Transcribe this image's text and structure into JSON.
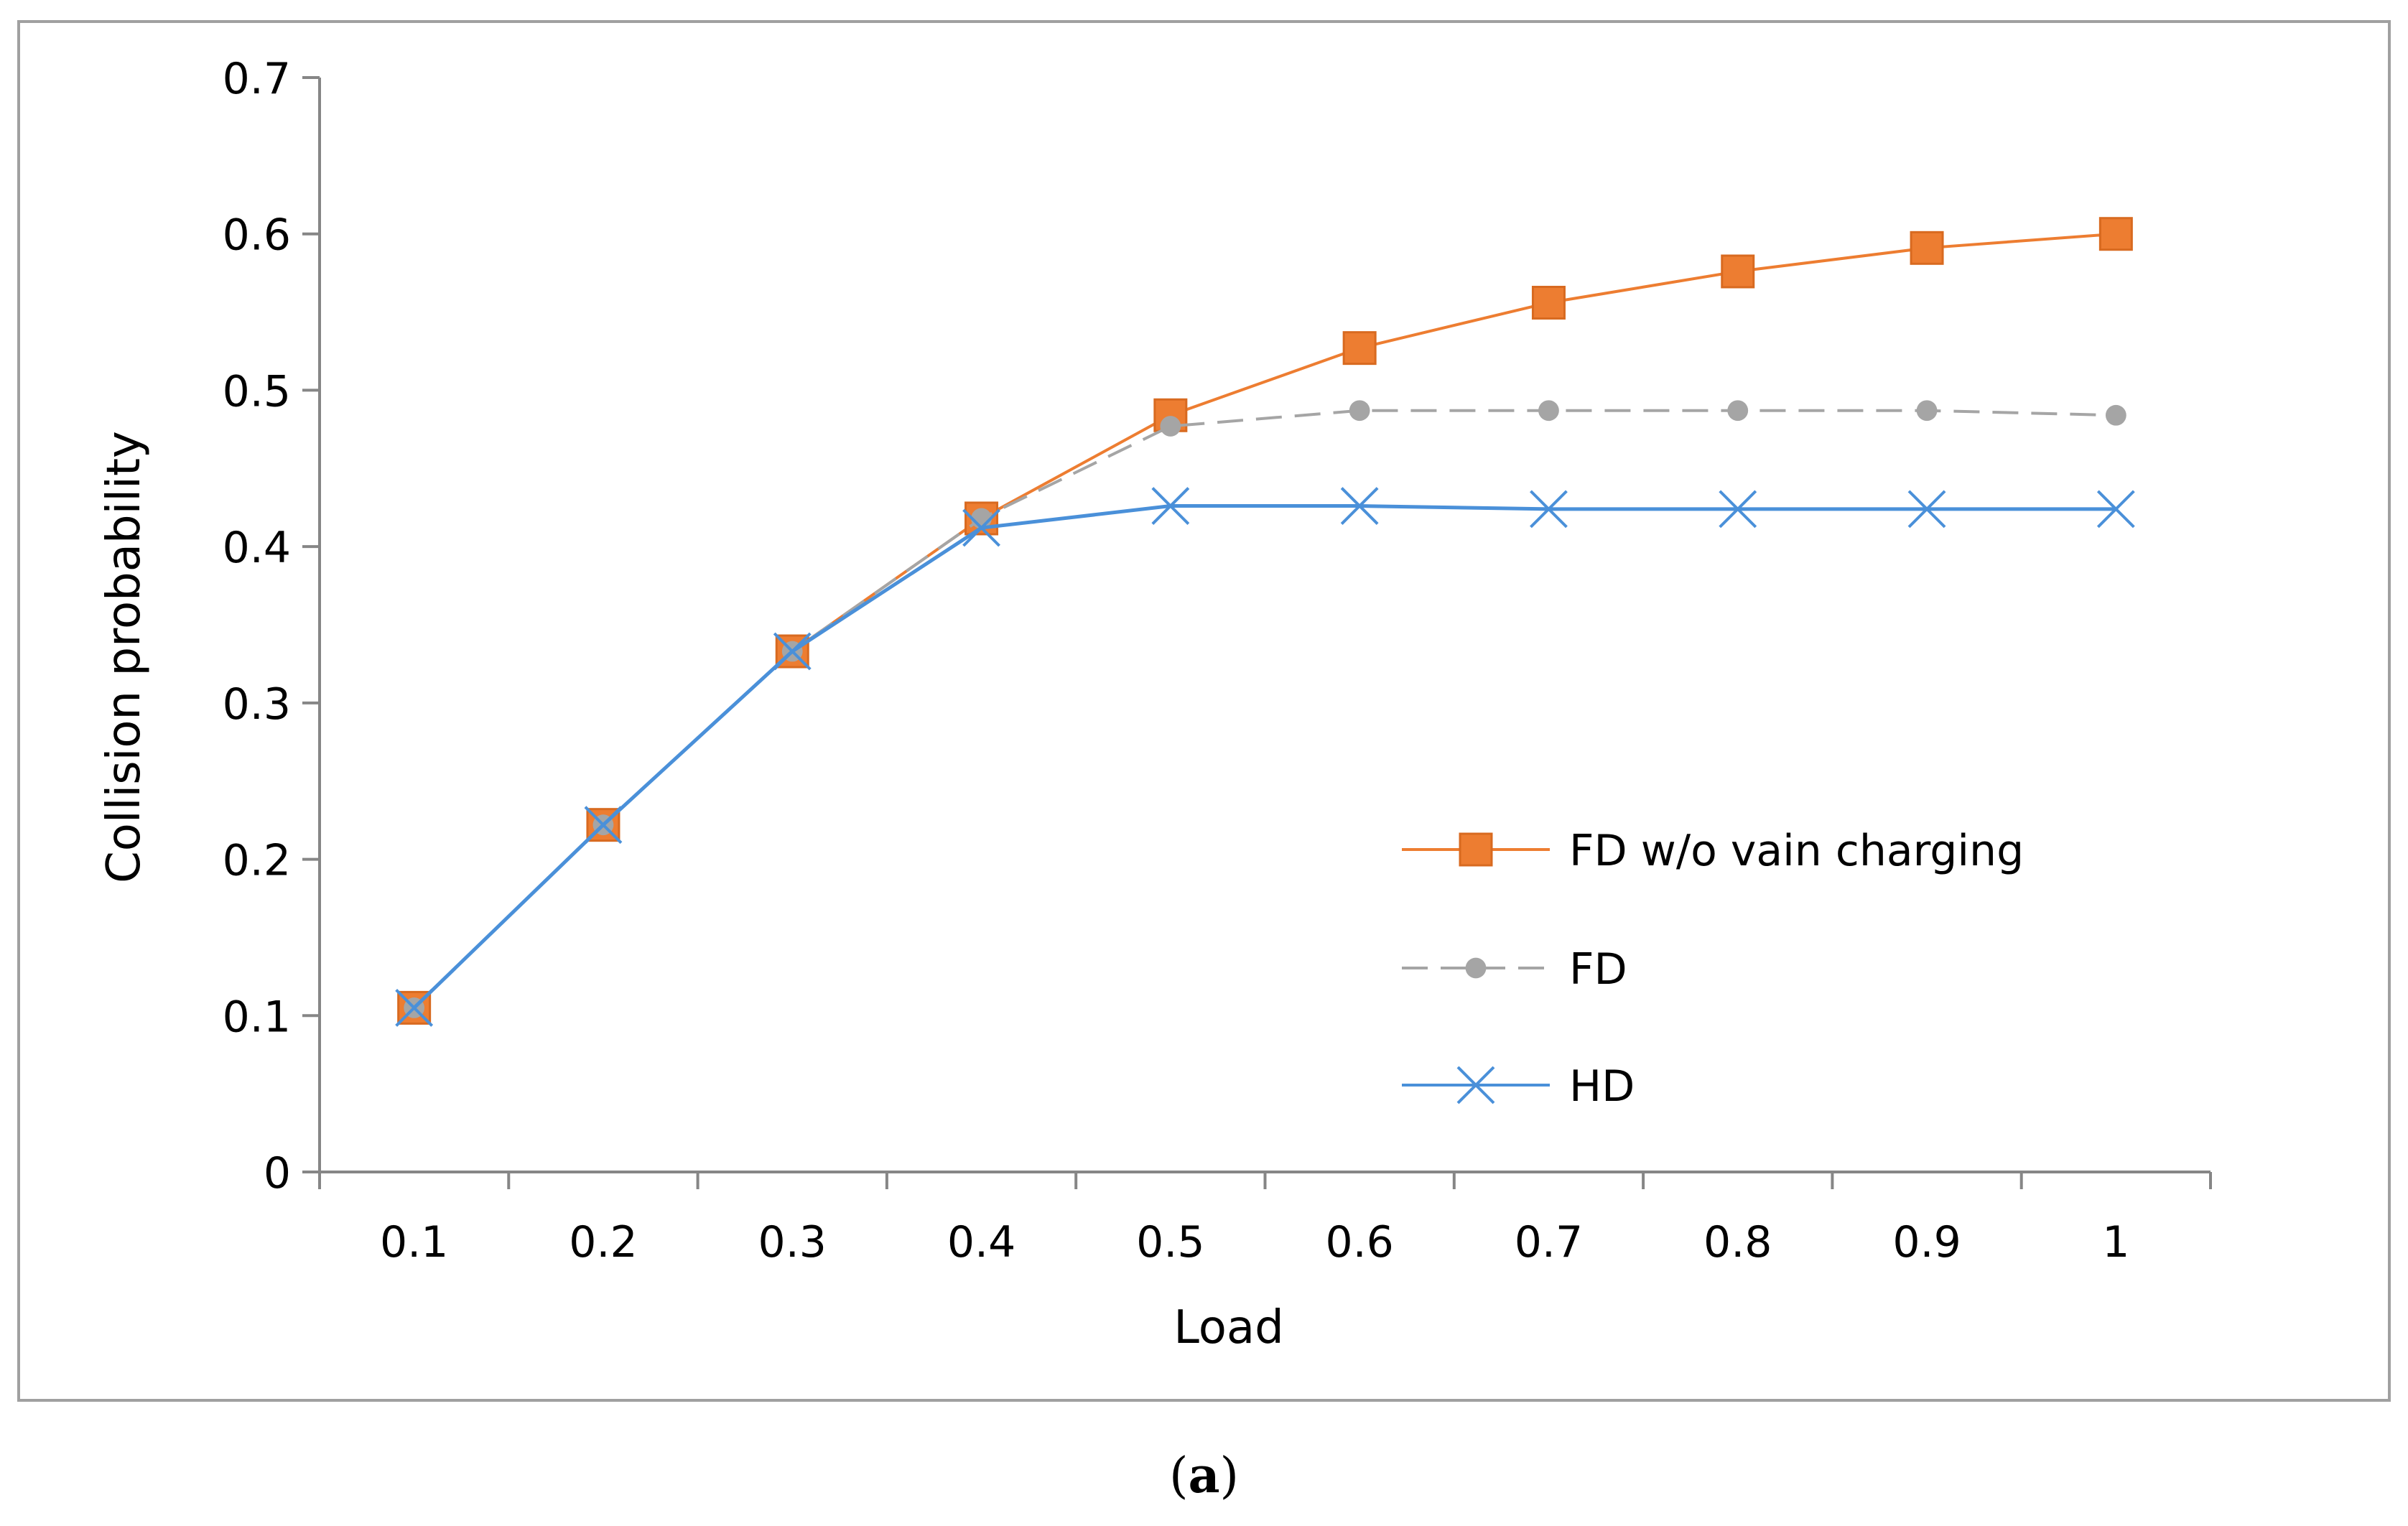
{
  "chart_data": {
    "type": "line",
    "title": "",
    "xlabel": "Load",
    "ylabel": "Collision probability",
    "categories": [
      "0.1",
      "0.2",
      "0.3",
      "0.4",
      "0.5",
      "0.6",
      "0.7",
      "0.8",
      "0.9",
      "1"
    ],
    "ylim": [
      0,
      0.7
    ],
    "yticks": [
      "0",
      "0.1",
      "0.2",
      "0.3",
      "0.4",
      "0.5",
      "0.6",
      "0.7"
    ],
    "legend_position": "lower-right inside plot",
    "series": [
      {
        "name": "FD w/o vain charging",
        "color": "#ed7d31",
        "marker": "square",
        "dash": "solid",
        "values": [
          0.105,
          0.222,
          0.333,
          0.418,
          0.484,
          0.527,
          0.556,
          0.576,
          0.591,
          0.6
        ]
      },
      {
        "name": "FD",
        "color": "#a5a5a5",
        "marker": "circle",
        "dash": "dashed",
        "values": [
          0.105,
          0.222,
          0.333,
          0.418,
          0.477,
          0.487,
          0.487,
          0.487,
          0.487,
          0.484
        ]
      },
      {
        "name": "HD",
        "color": "#4a90d9",
        "marker": "x",
        "dash": "solid",
        "values": [
          0.105,
          0.222,
          0.333,
          0.412,
          0.426,
          0.426,
          0.424,
          0.424,
          0.424,
          0.424
        ]
      }
    ]
  },
  "caption": {
    "open": "(",
    "label": "a",
    "close": ")"
  }
}
